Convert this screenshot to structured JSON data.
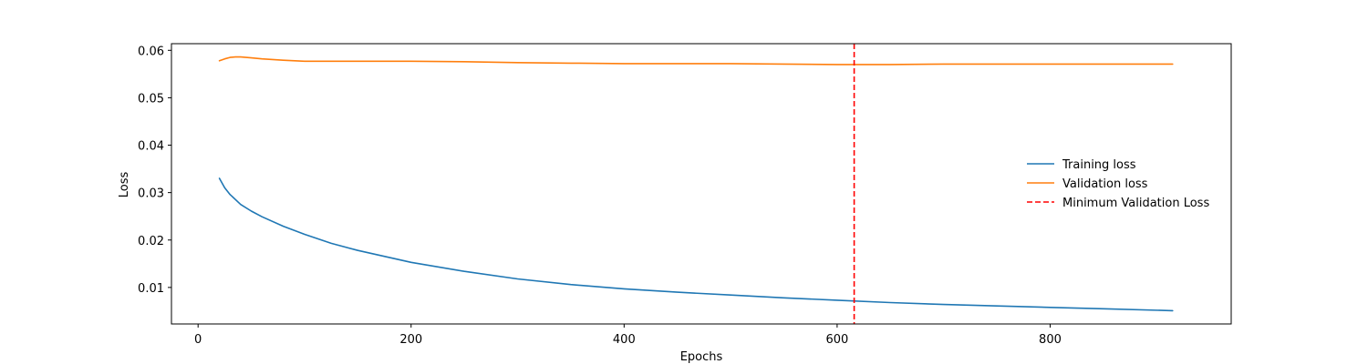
{
  "chart_data": {
    "type": "line",
    "xlabel": "Epochs",
    "ylabel": "Loss",
    "xlim": [
      -25,
      970
    ],
    "ylim": [
      0.0023,
      0.0614
    ],
    "x_ticks": [
      0,
      200,
      400,
      600,
      800
    ],
    "y_ticks": [
      0.01,
      0.02,
      0.03,
      0.04,
      0.05,
      0.06
    ],
    "grid": false,
    "legend_position": "center-right",
    "series": [
      {
        "name": "Training loss",
        "color": "#1f77b4",
        "style": "solid",
        "x": [
          20,
          25,
          30,
          40,
          50,
          60,
          80,
          100,
          125,
          150,
          200,
          250,
          300,
          350,
          400,
          450,
          500,
          550,
          600,
          650,
          700,
          750,
          800,
          850,
          915
        ],
        "y": [
          0.033,
          0.031,
          0.0296,
          0.0275,
          0.0261,
          0.0249,
          0.0229,
          0.0212,
          0.0193,
          0.0178,
          0.0153,
          0.0134,
          0.0118,
          0.0106,
          0.0097,
          0.009,
          0.0084,
          0.0078,
          0.0073,
          0.0068,
          0.0064,
          0.0061,
          0.0058,
          0.0055,
          0.0051
        ]
      },
      {
        "name": "Validation loss",
        "color": "#ff7f0e",
        "style": "solid",
        "x": [
          20,
          25,
          30,
          35,
          40,
          50,
          60,
          80,
          100,
          120,
          150,
          200,
          250,
          300,
          350,
          400,
          450,
          500,
          550,
          600,
          616,
          650,
          700,
          750,
          800,
          850,
          915
        ],
        "y": [
          0.0578,
          0.0582,
          0.0585,
          0.0586,
          0.0586,
          0.0584,
          0.0582,
          0.0579,
          0.0577,
          0.0577,
          0.0577,
          0.0577,
          0.0576,
          0.0574,
          0.0573,
          0.0572,
          0.0572,
          0.0572,
          0.0571,
          0.057,
          0.057,
          0.057,
          0.0571,
          0.0571,
          0.0571,
          0.0571,
          0.0571
        ]
      }
    ],
    "vlines": [
      {
        "name": "Minimum Validation Loss",
        "x": 616,
        "color": "#ff0000",
        "style": "dashed"
      }
    ]
  }
}
